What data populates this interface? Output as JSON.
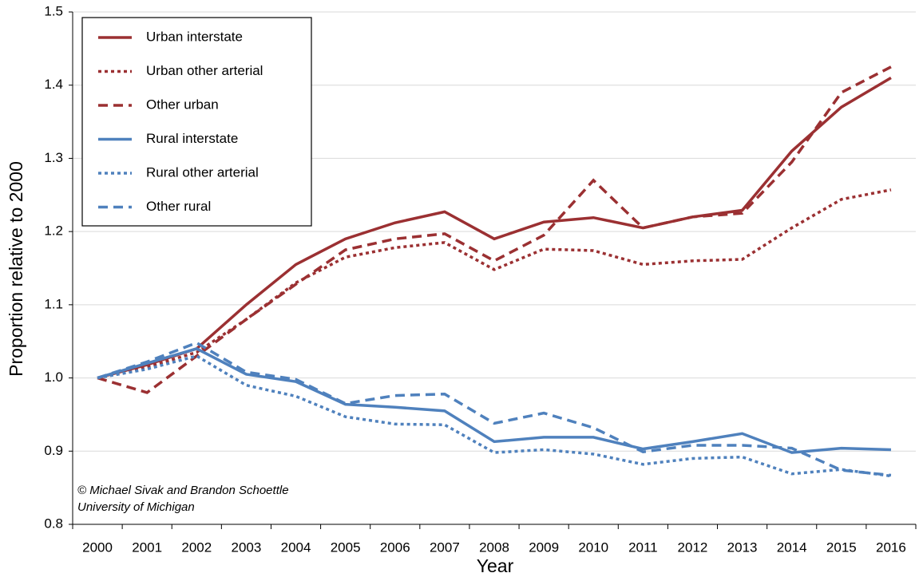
{
  "chart_data": {
    "type": "line",
    "xlabel": "Year",
    "ylabel": "Proportion relative to 2000",
    "annotations": [
      "© Michael Sivak and Brandon Schoettle",
      "University of Michigan"
    ],
    "categories": [
      "2000",
      "2001",
      "2002",
      "2003",
      "2004",
      "2005",
      "2006",
      "2007",
      "2008",
      "2009",
      "2010",
      "2011",
      "2012",
      "2013",
      "2014",
      "2015",
      "2016"
    ],
    "series": [
      {
        "name": "Urban interstate",
        "color": "#9b3032",
        "style": "solid",
        "values": [
          1.0,
          1.018,
          1.04,
          1.1,
          1.155,
          1.19,
          1.212,
          1.227,
          1.19,
          1.213,
          1.219,
          1.205,
          1.22,
          1.229,
          1.31,
          1.37,
          1.41
        ]
      },
      {
        "name": "Urban other arterial",
        "color": "#9b3032",
        "style": "dotted",
        "values": [
          1.0,
          1.015,
          1.035,
          1.08,
          1.13,
          1.165,
          1.178,
          1.185,
          1.148,
          1.176,
          1.174,
          1.155,
          1.16,
          1.162,
          1.205,
          1.244,
          1.257
        ]
      },
      {
        "name": "Other urban",
        "color": "#9b3032",
        "style": "dashed",
        "values": [
          1.0,
          0.98,
          1.03,
          1.08,
          1.128,
          1.175,
          1.19,
          1.197,
          1.16,
          1.195,
          1.27,
          1.205,
          1.22,
          1.225,
          1.295,
          1.39,
          1.425
        ]
      },
      {
        "name": "Rural interstate",
        "color": "#4f81bd",
        "style": "solid",
        "values": [
          1.0,
          1.02,
          1.04,
          1.005,
          0.995,
          0.964,
          0.96,
          0.955,
          0.913,
          0.919,
          0.919,
          0.903,
          0.913,
          0.924,
          0.898,
          0.904,
          0.902
        ]
      },
      {
        "name": "Rural other arterial",
        "color": "#4f81bd",
        "style": "dotted",
        "values": [
          1.0,
          1.012,
          1.03,
          0.99,
          0.975,
          0.947,
          0.937,
          0.936,
          0.898,
          0.902,
          0.896,
          0.882,
          0.89,
          0.892,
          0.869,
          0.875,
          0.866
        ]
      },
      {
        "name": "Other rural",
        "color": "#4f81bd",
        "style": "dashed",
        "values": [
          1.0,
          1.022,
          1.048,
          1.008,
          0.998,
          0.965,
          0.976,
          0.978,
          0.938,
          0.952,
          0.932,
          0.899,
          0.908,
          0.908,
          0.904,
          0.874,
          0.867
        ]
      }
    ],
    "ylim": [
      0.8,
      1.5
    ],
    "yticks": [
      0.8,
      0.9,
      {
        "value": 1,
        "label": "1.0"
      },
      1.1,
      1.2,
      1.3,
      1.4,
      1.5
    ],
    "grid": true,
    "legend": "top-left"
  }
}
